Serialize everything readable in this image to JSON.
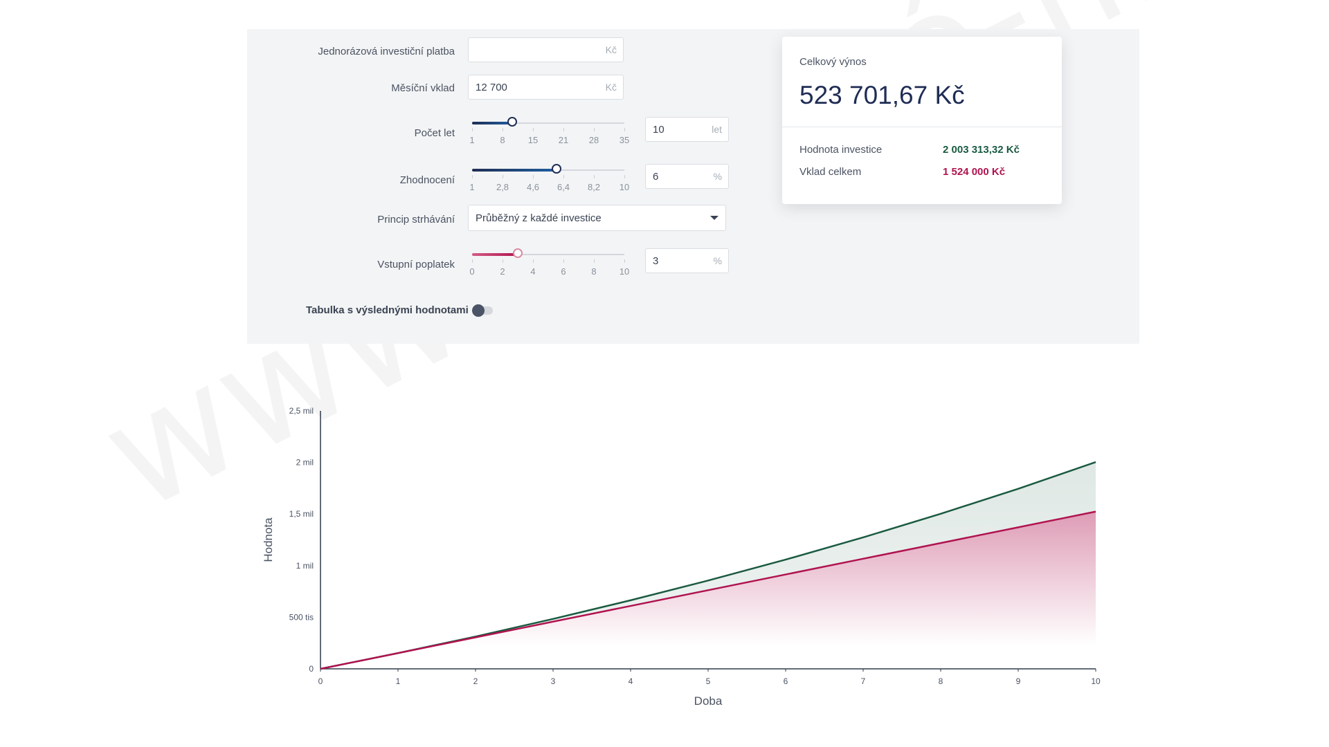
{
  "form": {
    "lump_sum": {
      "label": "Jednorázová investiční platba",
      "value": "",
      "unit": "Kč"
    },
    "monthly": {
      "label": "Měsíční vklad",
      "value": "12 700",
      "unit": "Kč"
    },
    "years": {
      "label": "Počet let",
      "value": "10",
      "unit": "let",
      "ticks": [
        "1",
        "8",
        "15",
        "21",
        "28",
        "35"
      ],
      "min": 1,
      "max": 35,
      "current": 10
    },
    "appreciation": {
      "label": "Zhodnocení",
      "value": "6",
      "unit": "%",
      "ticks": [
        "1",
        "2,8",
        "4,6",
        "6,4",
        "8,2",
        "10"
      ],
      "min": 1,
      "max": 10,
      "current": 6
    },
    "deduction": {
      "label": "Princip strhávání",
      "value": "Průběžný z každé investice"
    },
    "entry_fee": {
      "label": "Vstupní poplatek",
      "value": "3",
      "unit": "%",
      "ticks": [
        "0",
        "2",
        "4",
        "6",
        "8",
        "10"
      ],
      "min": 0,
      "max": 10,
      "current": 3
    },
    "table_toggle": {
      "label": "Tabulka s výslednými hodnotami",
      "on": false
    }
  },
  "summary": {
    "title": "Celkový výnos",
    "total": "523 701,67 Kč",
    "investment_value_label": "Hodnota investice",
    "investment_value": "2 003 313,32 Kč",
    "deposit_total_label": "Vklad celkem",
    "deposit_total": "1 524 000 Kč"
  },
  "colors": {
    "green": "#1a5a40",
    "crimson": "#b0134f",
    "navy": "#1f2d55",
    "slider_blue": "#1f5fa0"
  },
  "watermark": "www.snadné-finance.cz",
  "chart_data": {
    "type": "area",
    "xlabel": "Doba",
    "ylabel": "Hodnota",
    "x": [
      0,
      1,
      2,
      3,
      4,
      5,
      6,
      7,
      8,
      9,
      10
    ],
    "xticks": [
      "0",
      "1",
      "2",
      "3",
      "4",
      "5",
      "6",
      "7",
      "8",
      "9",
      "10"
    ],
    "yticks": [
      "0",
      "500 tis",
      "1 mil",
      "1,5 mil",
      "2 mil",
      "2,5 mil"
    ],
    "ylim": [
      0,
      2500000
    ],
    "series": [
      {
        "name": "Hodnota investice",
        "color": "#1a5a40",
        "values": [
          0,
          152400,
          313100,
          483800,
          664300,
          855600,
          1058600,
          1273900,
          1502400,
          1745000,
          2003313
        ]
      },
      {
        "name": "Vklad celkem",
        "color": "#b0134f",
        "values": [
          0,
          152400,
          304800,
          457200,
          609600,
          762000,
          914400,
          1066800,
          1219200,
          1371600,
          1524000
        ]
      }
    ]
  }
}
